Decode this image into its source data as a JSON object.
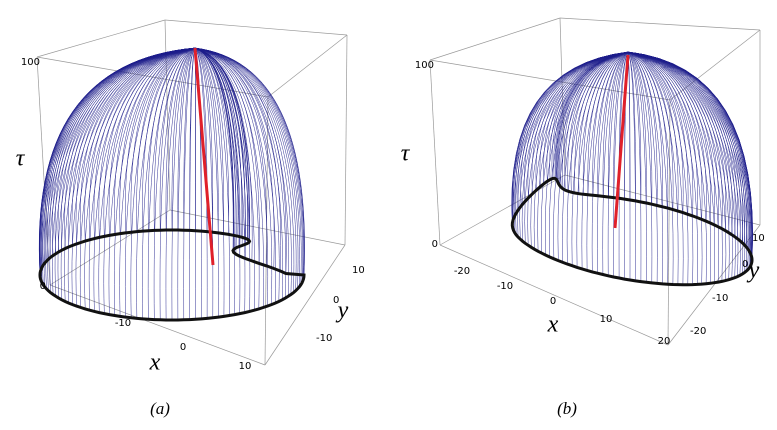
{
  "panels": [
    {
      "label": "(a)",
      "axis_labels": {
        "x": "x",
        "y": "y",
        "z": "τ"
      },
      "xticks": [
        -10,
        0,
        10
      ],
      "yticks": [
        10,
        0,
        -10
      ],
      "zticks": [
        100,
        0
      ]
    },
    {
      "label": "(b)",
      "axis_labels": {
        "x": "x",
        "y": "y",
        "z": "τ"
      },
      "xticks": [
        -20,
        -10,
        0,
        10,
        20
      ],
      "yticks": [
        10,
        0,
        -10,
        -20
      ],
      "zticks": [
        100,
        0
      ]
    }
  ]
}
